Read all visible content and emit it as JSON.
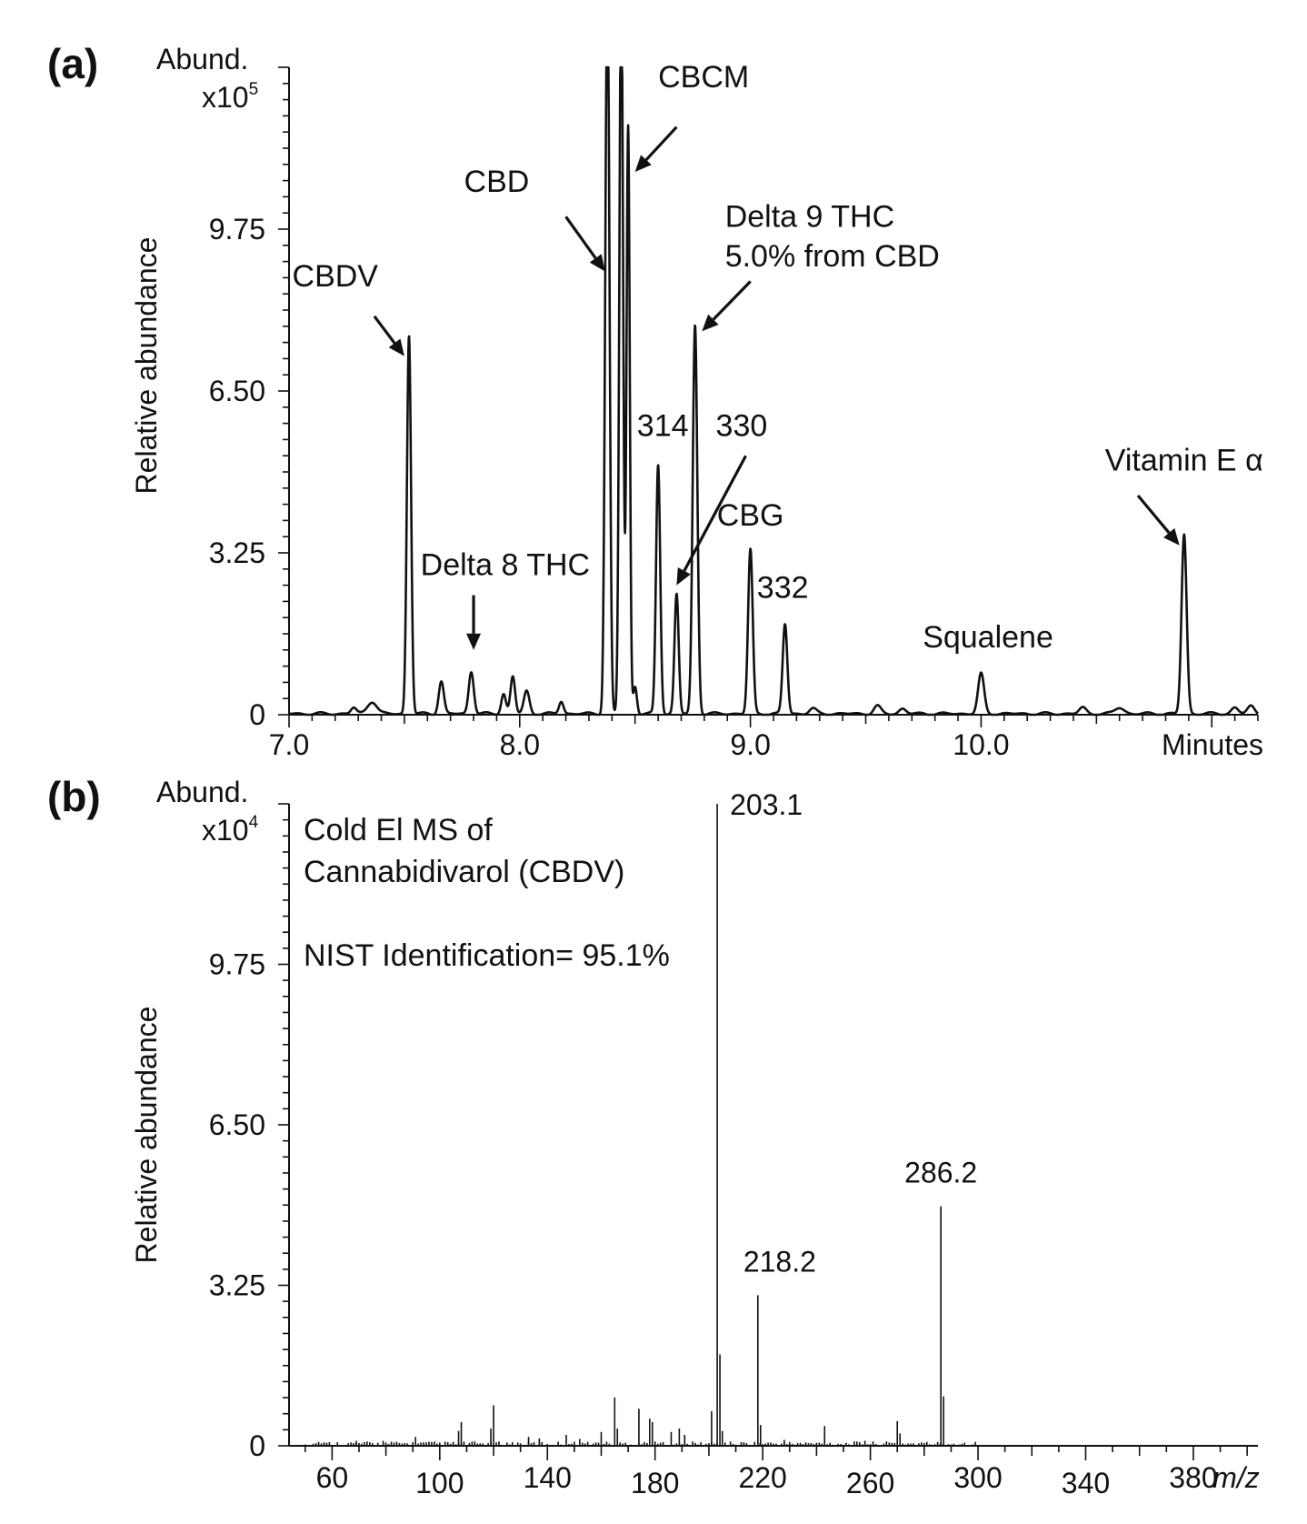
{
  "chart_data": [
    {
      "panel": "(a)",
      "type": "line",
      "ylabel": "Relative abundance",
      "abund_label": "Abund.",
      "abund_scale": "x10",
      "abund_exp": "5",
      "xunit_label": "Minutes",
      "xlim": [
        7.0,
        11.2
      ],
      "ylim": [
        0,
        13.0
      ],
      "x_ticks": [
        "7.0",
        "8.0",
        "9.0",
        "10.0"
      ],
      "y_ticks": [
        "0",
        "3.25",
        "6.50",
        "9.75"
      ],
      "peaks": [
        {
          "x": 7.28,
          "y": 0.12,
          "w": 0.012
        },
        {
          "x": 7.36,
          "y": 0.25,
          "w": 0.02
        },
        {
          "x": 7.52,
          "y": 7.6,
          "w": 0.009
        },
        {
          "x": 7.66,
          "y": 0.65,
          "w": 0.011
        },
        {
          "x": 7.79,
          "y": 0.85,
          "w": 0.011
        },
        {
          "x": 7.93,
          "y": 0.4,
          "w": 0.01
        },
        {
          "x": 7.97,
          "y": 0.75,
          "w": 0.01
        },
        {
          "x": 8.03,
          "y": 0.45,
          "w": 0.012
        },
        {
          "x": 8.18,
          "y": 0.25,
          "w": 0.01
        },
        {
          "x": 8.38,
          "y": 15.0,
          "w": 0.009
        },
        {
          "x": 8.44,
          "y": 15.0,
          "w": 0.008
        },
        {
          "x": 8.47,
          "y": 11.8,
          "w": 0.007
        },
        {
          "x": 8.5,
          "y": 0.55,
          "w": 0.008
        },
        {
          "x": 8.6,
          "y": 5.0,
          "w": 0.009
        },
        {
          "x": 8.68,
          "y": 2.4,
          "w": 0.009
        },
        {
          "x": 8.76,
          "y": 7.8,
          "w": 0.01
        },
        {
          "x": 9.0,
          "y": 3.3,
          "w": 0.01
        },
        {
          "x": 9.15,
          "y": 1.8,
          "w": 0.01
        },
        {
          "x": 9.27,
          "y": 0.1,
          "w": 0.015
        },
        {
          "x": 9.55,
          "y": 0.15,
          "w": 0.015
        },
        {
          "x": 9.66,
          "y": 0.1,
          "w": 0.015
        },
        {
          "x": 10.0,
          "y": 0.8,
          "w": 0.013
        },
        {
          "x": 10.44,
          "y": 0.12,
          "w": 0.015
        },
        {
          "x": 10.6,
          "y": 0.12,
          "w": 0.02
        },
        {
          "x": 10.88,
          "y": 3.6,
          "w": 0.011
        },
        {
          "x": 11.1,
          "y": 0.12,
          "w": 0.015
        },
        {
          "x": 11.17,
          "y": 0.15,
          "w": 0.015
        }
      ],
      "annotations": [
        {
          "text": "CBDV",
          "tx": 7.2,
          "ty": 8.6,
          "ax0": 7.37,
          "ay0": 8.0,
          "ax1": 7.5,
          "ay1": 7.2
        },
        {
          "text": "Delta 8 THC",
          "tx": 7.57,
          "ty": 2.8,
          "ax0": 7.8,
          "ay0": 2.4,
          "ax1": 7.8,
          "ay1": 1.3
        },
        {
          "text": "CBD",
          "tx": 7.9,
          "ty": 10.5,
          "ax0": 8.2,
          "ay0": 10.0,
          "ax1": 8.37,
          "ay1": 8.9
        },
        {
          "text": "CBCM",
          "tx": 8.6,
          "ty": 12.6,
          "ax0": 8.68,
          "ay0": 11.8,
          "ax1": 8.5,
          "ay1": 10.9
        },
        {
          "text": "Delta 9 THC",
          "tx": 8.89,
          "ty": 9.8,
          "ax0": 9.0,
          "ay0": 8.7,
          "ax1": 8.79,
          "ay1": 7.7
        },
        {
          "text": "5.0% from CBD",
          "tx": 8.89,
          "ty": 9.0
        },
        {
          "text": "314",
          "tx": 8.62,
          "ty": 5.6
        },
        {
          "text": "330",
          "tx": 8.85,
          "ty": 5.6,
          "ax0": 8.98,
          "ay0": 5.2,
          "ax1": 8.68,
          "ay1": 2.6
        },
        {
          "text": "CBG",
          "tx": 9.0,
          "ty": 3.8
        },
        {
          "text": "332",
          "tx": 9.14,
          "ty": 2.35
        },
        {
          "text": "Squalene",
          "tx": 10.03,
          "ty": 1.35
        },
        {
          "text": "Vitamin E α",
          "tx": 10.88,
          "ty": 4.9,
          "ax0": 10.68,
          "ay0": 4.4,
          "ax1": 10.86,
          "ay1": 3.4
        }
      ]
    },
    {
      "panel": "(b)",
      "type": "bar",
      "ylabel": "Relative abundance",
      "abund_label": "Abund.",
      "abund_scale": "x10",
      "abund_exp": "4",
      "xunit_label": "m/z",
      "xlim": [
        44,
        404
      ],
      "ylim": [
        0,
        13.0
      ],
      "x_ticks": [
        "60",
        "100",
        "140",
        "180",
        "220",
        "260",
        "300",
        "340",
        "380"
      ],
      "y_ticks": [
        "0",
        "3.25",
        "6.50",
        "9.75"
      ],
      "text_lines": [
        "Cold El MS of",
        "Cannabidivarol (CBDV)",
        "",
        "NIST Identification= 95.1%"
      ],
      "peaks": [
        {
          "x": 203.1,
          "y": 13.0,
          "label": "203.1"
        },
        {
          "x": 204.1,
          "y": 1.85
        },
        {
          "x": 218.2,
          "y": 3.05,
          "label": "218.2"
        },
        {
          "x": 219.2,
          "y": 0.42
        },
        {
          "x": 286.2,
          "y": 4.85,
          "label": "286.2"
        },
        {
          "x": 287.2,
          "y": 1.0
        },
        {
          "x": 201,
          "y": 0.7
        },
        {
          "x": 205,
          "y": 0.3
        },
        {
          "x": 165,
          "y": 0.98
        },
        {
          "x": 166,
          "y": 0.35
        },
        {
          "x": 174,
          "y": 0.75
        },
        {
          "x": 178,
          "y": 0.55
        },
        {
          "x": 179,
          "y": 0.48
        },
        {
          "x": 120,
          "y": 0.82
        },
        {
          "x": 119,
          "y": 0.35
        },
        {
          "x": 108,
          "y": 0.48
        },
        {
          "x": 107,
          "y": 0.3
        },
        {
          "x": 270,
          "y": 0.5
        },
        {
          "x": 271,
          "y": 0.25
        },
        {
          "x": 243,
          "y": 0.4
        },
        {
          "x": 189,
          "y": 0.35
        },
        {
          "x": 186,
          "y": 0.28
        },
        {
          "x": 191,
          "y": 0.22
        },
        {
          "x": 160,
          "y": 0.28
        },
        {
          "x": 147,
          "y": 0.22
        },
        {
          "x": 91,
          "y": 0.18
        },
        {
          "x": 133,
          "y": 0.18
        },
        {
          "x": 137,
          "y": 0.15
        },
        {
          "x": 152,
          "y": 0.14
        },
        {
          "x": 228,
          "y": 0.12
        },
        {
          "x": 258,
          "y": 0.1
        },
        {
          "x": 69,
          "y": 0.1
        },
        {
          "x": 79,
          "y": 0.1
        },
        {
          "x": 55,
          "y": 0.08
        }
      ]
    }
  ]
}
